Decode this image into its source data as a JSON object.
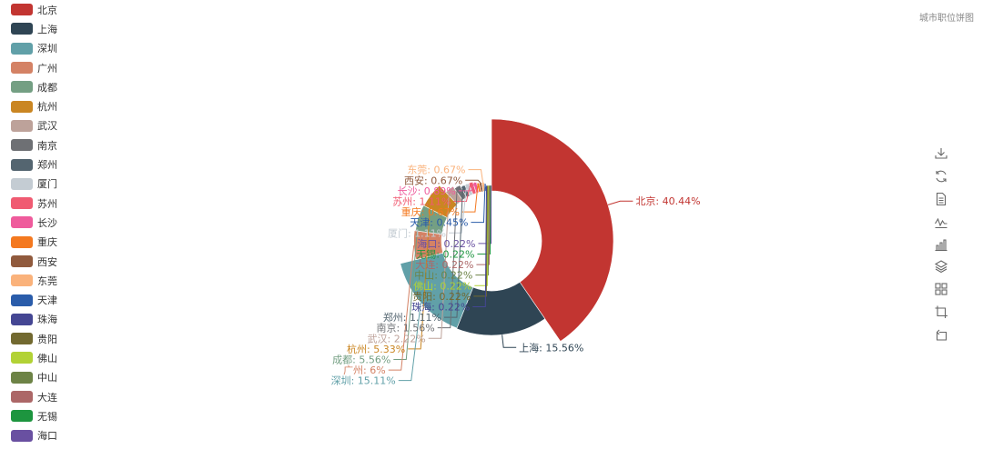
{
  "title": "城市职位饼图",
  "chart_data": {
    "type": "pie",
    "variant": "donut",
    "legend_position": "left",
    "unit": "%",
    "slices": [
      {
        "name": "北京",
        "value": 40.44,
        "color": "#c23531"
      },
      {
        "name": "上海",
        "value": 15.56,
        "color": "#2f4554"
      },
      {
        "name": "深圳",
        "value": 15.11,
        "color": "#61a0a8"
      },
      {
        "name": "广州",
        "value": 6,
        "color": "#d48265"
      },
      {
        "name": "成都",
        "value": 5.56,
        "color": "#749f83"
      },
      {
        "name": "杭州",
        "value": 5.33,
        "color": "#ca8622"
      },
      {
        "name": "武汉",
        "value": 2.22,
        "color": "#bda29a"
      },
      {
        "name": "南京",
        "value": 1.56,
        "color": "#6e7074"
      },
      {
        "name": "郑州",
        "value": 1.11,
        "color": "#546570"
      },
      {
        "name": "厦门",
        "value": 1.11,
        "color": "#c4ccd3"
      },
      {
        "name": "苏州",
        "value": 1.11,
        "color": "#f05b72"
      },
      {
        "name": "长沙",
        "value": 0.89,
        "color": "#ef5b9c"
      },
      {
        "name": "重庆",
        "value": 0.67,
        "color": "#f47920"
      },
      {
        "name": "西安",
        "value": 0.67,
        "color": "#905a3d"
      },
      {
        "name": "东莞",
        "value": 0.67,
        "color": "#fab27b"
      },
      {
        "name": "天津",
        "value": 0.45,
        "color": "#2a5caa"
      },
      {
        "name": "珠海",
        "value": 0.22,
        "color": "#444693"
      },
      {
        "name": "贵阳",
        "value": 0.22,
        "color": "#726930"
      },
      {
        "name": "佛山",
        "value": 0.22,
        "color": "#b2d235"
      },
      {
        "name": "中山",
        "value": 0.22,
        "color": "#6d8346"
      },
      {
        "name": "大连",
        "value": 0.22,
        "color": "#ac6767"
      },
      {
        "name": "无锡",
        "value": 0.22,
        "color": "#1d953f"
      },
      {
        "name": "海口",
        "value": 0.22,
        "color": "#6950a1"
      }
    ]
  },
  "toolbox": [
    "download-icon",
    "refresh-icon",
    "data-view-icon",
    "line-chart-icon",
    "bar-chart-icon",
    "stack-icon",
    "tiled-icon",
    "zoom-icon",
    "zoom-reset-icon"
  ]
}
